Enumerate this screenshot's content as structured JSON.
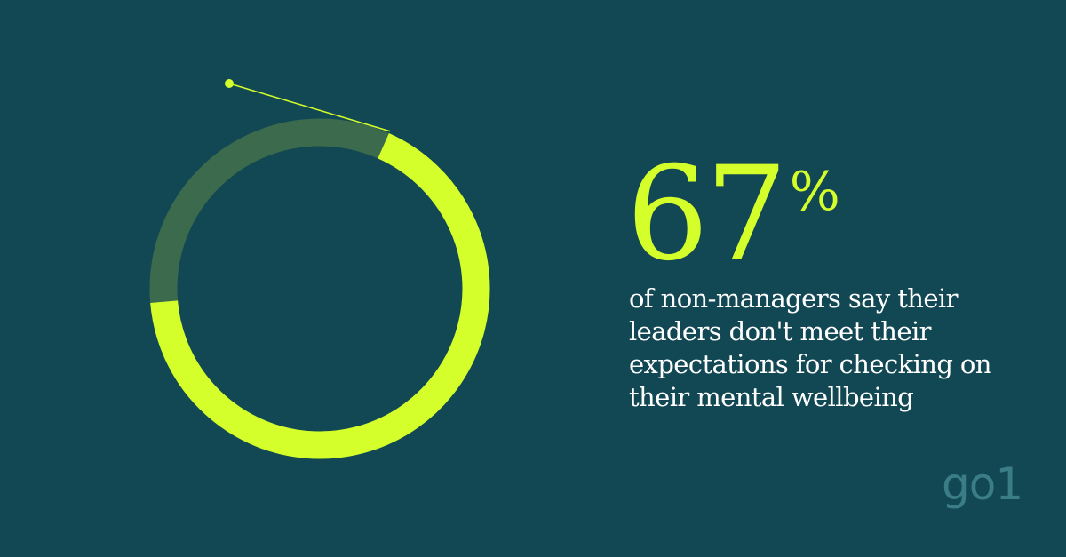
{
  "chart_data": {
    "type": "pie",
    "values": [
      67,
      33
    ],
    "colors": [
      "#d4ff2a",
      "#3b6b4c"
    ]
  },
  "stat": {
    "value": "67",
    "unit": "%"
  },
  "caption_lines": [
    "of non-managers say their",
    "leaders don't meet their",
    "expectations for checking on",
    "their mental wellbeing"
  ],
  "brand": {
    "logo_text": "go1",
    "logo_color": "#3a7d87"
  },
  "colors": {
    "background": "#124854",
    "accent": "#d4ff2a",
    "remainder": "#3b6b4c",
    "text": "#ffffff"
  }
}
